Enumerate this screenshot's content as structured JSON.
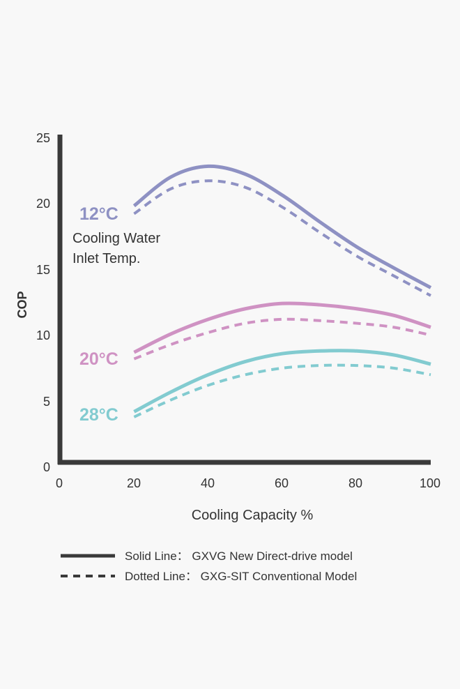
{
  "chart_data": {
    "type": "line",
    "ylabel": "COP",
    "xlabel": "Cooling Capacity %",
    "xlim": [
      0,
      100
    ],
    "ylim": [
      0,
      25
    ],
    "xticks": [
      "0",
      "20",
      "40",
      "60",
      "80",
      "100"
    ],
    "yticks": [
      "0",
      "5",
      "10",
      "15",
      "20",
      "25"
    ],
    "annotation": [
      "Cooling Water",
      "Inlet Temp."
    ],
    "groups": [
      {
        "label": "12°C",
        "color": "#8e91c3",
        "solid": {
          "x": [
            20,
            30,
            40,
            50,
            60,
            70,
            80,
            90,
            100
          ],
          "y": [
            19.6,
            21.8,
            22.6,
            22.0,
            20.4,
            18.4,
            16.5,
            14.9,
            13.4
          ]
        },
        "dotted": {
          "x": [
            20,
            30,
            40,
            50,
            60,
            70,
            80,
            90,
            100
          ],
          "y": [
            19.0,
            20.9,
            21.5,
            21.0,
            19.5,
            17.6,
            15.8,
            14.3,
            12.8
          ]
        }
      },
      {
        "label": "20°C",
        "color": "#cf92c3",
        "solid": {
          "x": [
            20,
            30,
            40,
            50,
            60,
            70,
            80,
            90,
            100
          ],
          "y": [
            8.5,
            9.9,
            11.0,
            11.8,
            12.2,
            12.1,
            11.8,
            11.3,
            10.4
          ]
        },
        "dotted": {
          "x": [
            20,
            30,
            40,
            50,
            60,
            70,
            80,
            90,
            100
          ],
          "y": [
            8.0,
            9.1,
            10.0,
            10.7,
            11.0,
            10.9,
            10.7,
            10.4,
            9.8
          ]
        }
      },
      {
        "label": "28°C",
        "color": "#82cbd0",
        "solid": {
          "x": [
            20,
            30,
            40,
            50,
            60,
            70,
            80,
            90,
            100
          ],
          "y": [
            4.0,
            5.5,
            6.8,
            7.8,
            8.4,
            8.6,
            8.6,
            8.3,
            7.6
          ]
        },
        "dotted": {
          "x": [
            20,
            30,
            40,
            50,
            60,
            70,
            80,
            90,
            100
          ],
          "y": [
            3.6,
            4.9,
            6.0,
            6.8,
            7.3,
            7.5,
            7.5,
            7.3,
            6.8
          ]
        }
      }
    ],
    "legend": [
      {
        "style": "solid",
        "text": "Solid Line：  GXVG New Direct-drive model"
      },
      {
        "style": "dotted",
        "text": "Dotted Line：  GXG-SIT Conventional Model"
      }
    ]
  }
}
